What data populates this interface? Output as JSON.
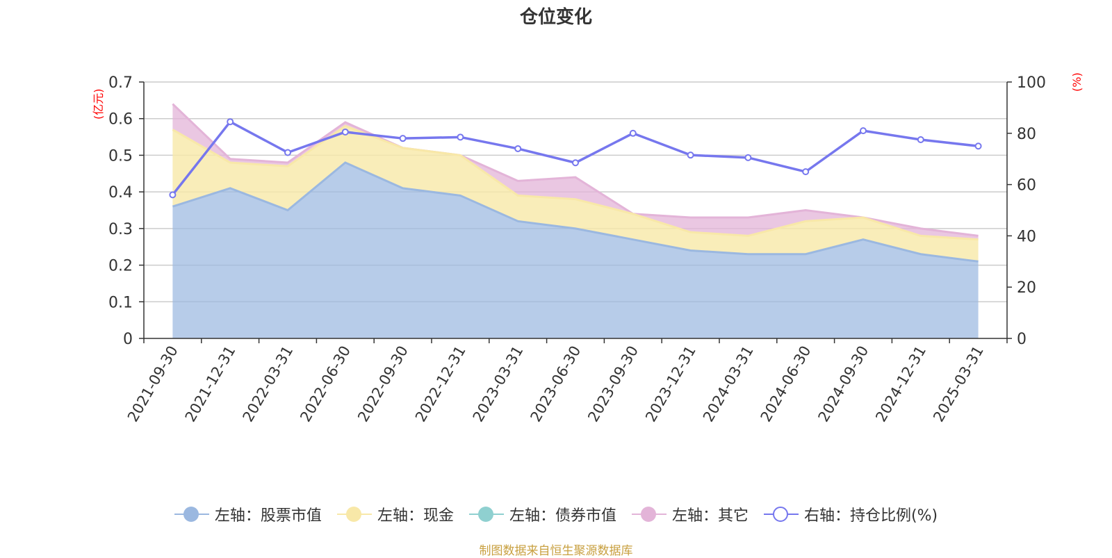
{
  "title": "仓位变化",
  "left_unit": "(亿元)",
  "right_unit": "(%)",
  "source": "制图数据来自恒生聚源数据库",
  "colors": {
    "stock": "#9bb8e0",
    "cash": "#f8e8a8",
    "bond": "#8fd0d0",
    "other": "#e3b4d8",
    "ratio": "#7677ee"
  },
  "legend": [
    {
      "key": "stock",
      "label": "左轴：股票市值",
      "color": "#9bb8e0",
      "icon": "filled-circle-icon"
    },
    {
      "key": "cash",
      "label": "左轴：现金",
      "color": "#f8e8a8",
      "icon": "filled-circle-icon"
    },
    {
      "key": "bond",
      "label": "左轴：债券市值",
      "color": "#8fd0d0",
      "icon": "filled-circle-icon"
    },
    {
      "key": "other",
      "label": "左轴：其它",
      "color": "#e3b4d8",
      "icon": "filled-circle-icon"
    },
    {
      "key": "ratio",
      "label": "右轴：持仓比例(%)",
      "color": "#7677ee",
      "icon": "hollow-circle-icon"
    }
  ],
  "chart_data": {
    "type": "area",
    "title": "仓位变化",
    "categories": [
      "2021-09-30",
      "2021-12-31",
      "2022-03-31",
      "2022-06-30",
      "2022-09-30",
      "2022-12-31",
      "2023-03-31",
      "2023-06-30",
      "2023-09-30",
      "2023-12-31",
      "2024-03-31",
      "2024-06-30",
      "2024-09-30",
      "2024-12-31",
      "2025-03-31"
    ],
    "left_axis": {
      "label": "(亿元)",
      "min": 0,
      "max": 0.7,
      "ticks": [
        0,
        0.1,
        0.2,
        0.3,
        0.4,
        0.5,
        0.6,
        0.7
      ],
      "tick_labels": [
        "0",
        "0.1",
        "0.2",
        "0.3",
        "0.4",
        "0.5",
        "0.6",
        "0.7"
      ]
    },
    "right_axis": {
      "label": "(%)",
      "min": 0,
      "max": 100,
      "ticks": [
        0,
        20,
        40,
        60,
        80,
        100
      ],
      "tick_labels": [
        "0",
        "20",
        "40",
        "60",
        "80",
        "100"
      ]
    },
    "series": [
      {
        "name": "左轴：股票市值",
        "axis": "left",
        "stacked": true,
        "values": [
          0.36,
          0.41,
          0.35,
          0.48,
          0.41,
          0.39,
          0.32,
          0.3,
          0.27,
          0.24,
          0.23,
          0.23,
          0.27,
          0.23,
          0.21
        ]
      },
      {
        "name": "左轴：现金",
        "axis": "left",
        "stacked": true,
        "values": [
          0.21,
          0.07,
          0.12,
          0.1,
          0.11,
          0.11,
          0.07,
          0.08,
          0.07,
          0.05,
          0.05,
          0.09,
          0.06,
          0.05,
          0.06
        ]
      },
      {
        "name": "左轴：债券市值",
        "axis": "left",
        "stacked": true,
        "values": [
          0,
          0,
          0,
          0,
          0,
          0,
          0,
          0,
          0,
          0,
          0,
          0,
          0,
          0,
          0
        ]
      },
      {
        "name": "左轴：其它",
        "axis": "left",
        "stacked": true,
        "values": [
          0.07,
          0.01,
          0.01,
          0.01,
          0.0,
          0.0,
          0.04,
          0.06,
          0.0,
          0.04,
          0.05,
          0.03,
          0.0,
          0.02,
          0.01
        ]
      },
      {
        "name": "右轴：持仓比例(%)",
        "axis": "right",
        "type": "line",
        "values": [
          56,
          84.5,
          72.5,
          80.5,
          78,
          78.5,
          74,
          68.5,
          80,
          71.5,
          70.5,
          65,
          81,
          77.5,
          75
        ]
      }
    ],
    "grid": true,
    "legend_position": "bottom"
  }
}
